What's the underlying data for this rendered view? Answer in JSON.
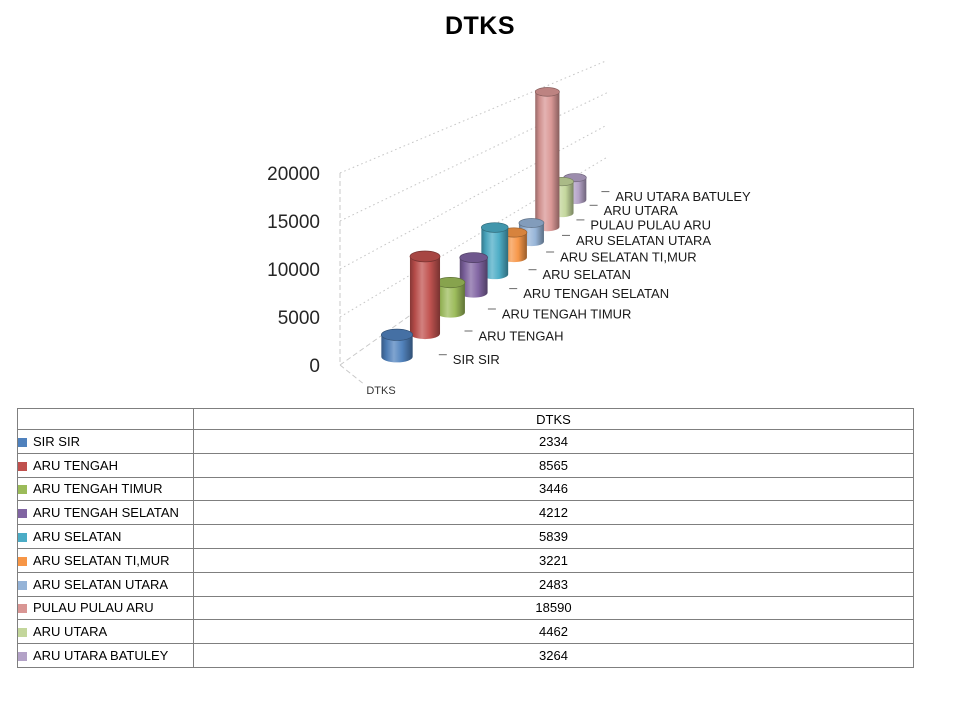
{
  "title": "DTKS",
  "chart_data": {
    "type": "bar",
    "subtype": "3d-cylinder",
    "title": "DTKS",
    "series_name": "DTKS",
    "axis_label": "DTKS",
    "categories": [
      "SIR SIR",
      "ARU TENGAH",
      "ARU TENGAH TIMUR",
      "ARU TENGAH SELATAN",
      "ARU SELATAN",
      "ARU SELATAN TI,MUR",
      "ARU SELATAN UTARA",
      "PULAU PULAU ARU",
      "ARU UTARA",
      "ARU UTARA BATULEY"
    ],
    "values": [
      2334,
      8565,
      3446,
      4212,
      5839,
      3221,
      2483,
      18590,
      4462,
      3264
    ],
    "colors": [
      "#4F81BD",
      "#C0504D",
      "#9BBB59",
      "#8064A2",
      "#4BACC6",
      "#F79646",
      "#95B3D7",
      "#D99694",
      "#C3D69B",
      "#B3A2C7"
    ],
    "y_ticks": [
      0,
      5000,
      10000,
      15000,
      20000
    ],
    "ylim": [
      0,
      20000
    ],
    "grid": true,
    "legend_position": "table-below"
  },
  "table": {
    "header": "DTKS",
    "rows": [
      {
        "label": "SIR SIR",
        "value": "2334",
        "color": "#4F81BD"
      },
      {
        "label": "ARU TENGAH",
        "value": "8565",
        "color": "#C0504D"
      },
      {
        "label": "ARU TENGAH TIMUR",
        "value": "3446",
        "color": "#9BBB59"
      },
      {
        "label": "ARU TENGAH SELATAN",
        "value": "4212",
        "color": "#8064A2"
      },
      {
        "label": "ARU SELATAN",
        "value": "5839",
        "color": "#4BACC6"
      },
      {
        "label": "ARU SELATAN TI,MUR",
        "value": "3221",
        "color": "#F79646"
      },
      {
        "label": "ARU SELATAN UTARA",
        "value": "2483",
        "color": "#95B3D7"
      },
      {
        "label": "PULAU PULAU ARU",
        "value": "18590",
        "color": "#D99694"
      },
      {
        "label": "ARU UTARA",
        "value": "4462",
        "color": "#C3D69B"
      },
      {
        "label": "ARU UTARA BATULEY",
        "value": "3264",
        "color": "#B3A2C7"
      }
    ]
  }
}
